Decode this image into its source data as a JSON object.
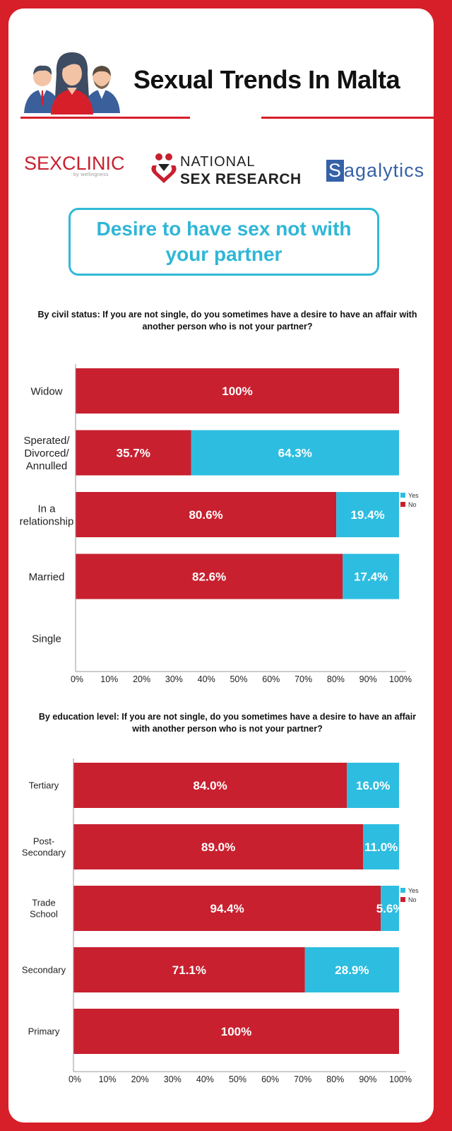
{
  "header": {
    "title": "Sexual Trends  In Malta"
  },
  "logos": {
    "sexclinic": "SEXCLINIC",
    "sexclinic_sub": "by wellingness",
    "nsr_line1": "NATIONAL",
    "nsr_line2": "SEX RESEARCH",
    "sagalytics_s": "S",
    "sagalytics_rest": "agalytics"
  },
  "topic": "Desire to have sex not with your partner",
  "colors": {
    "yes": "#2dbde0",
    "no": "#c8202f",
    "brand": "#d71f2a"
  },
  "chart_data": [
    {
      "type": "bar",
      "orientation": "horizontal",
      "stacked": true,
      "title": "By civil status: If you are not single, do you sometimes have a desire to have an affair with another person who is not your partner?",
      "categories": [
        "Widow",
        "Sperated/ Divorced/ Annulled",
        "In a relationship",
        "Married",
        "Single"
      ],
      "category_lines": [
        [
          "Widow"
        ],
        [
          "Sperated/",
          "Divorced/",
          "Annulled"
        ],
        [
          "In a",
          "relationship"
        ],
        [
          "Married"
        ],
        [
          "Single"
        ]
      ],
      "series": [
        {
          "name": "No",
          "values": [
            100,
            35.7,
            80.6,
            82.6,
            null
          ],
          "labels": [
            "100%",
            "35.7%",
            "80.6%",
            "82.6%",
            ""
          ]
        },
        {
          "name": "Yes",
          "values": [
            0,
            64.3,
            19.4,
            17.4,
            null
          ],
          "labels": [
            "",
            "64.3%",
            "19.4%",
            "17.4%",
            ""
          ]
        }
      ],
      "xlim": [
        0,
        100
      ],
      "xticks": [
        "0%",
        "10%",
        "20%",
        "30%",
        "40%",
        "50%",
        "60%",
        "70%",
        "80%",
        "90%",
        "100%"
      ],
      "legend": [
        "Yes",
        "No"
      ],
      "legend_position": "right"
    },
    {
      "type": "bar",
      "orientation": "horizontal",
      "stacked": true,
      "title": "By education level: If you are not single, do you sometimes have a desire to have an affair with another person who is not your partner?",
      "categories": [
        "Tertiary",
        "Post-Secondary",
        "Trade School",
        "Secondary",
        "Primary"
      ],
      "category_lines": [
        [
          "Tertiary"
        ],
        [
          "Post-",
          "Secondary"
        ],
        [
          "Trade",
          "School"
        ],
        [
          "Secondary"
        ],
        [
          "Primary"
        ]
      ],
      "series": [
        {
          "name": "No",
          "values": [
            84.0,
            89.0,
            94.4,
            71.1,
            100
          ],
          "labels": [
            "84.0%",
            "89.0%",
            "94.4%",
            "71.1%",
            "100%"
          ]
        },
        {
          "name": "Yes",
          "values": [
            16.0,
            11.0,
            5.6,
            28.9,
            0
          ],
          "labels": [
            "16.0%",
            "11.0%",
            "5.6%",
            "28.9%",
            ""
          ]
        }
      ],
      "xlim": [
        0,
        100
      ],
      "xticks": [
        "0%",
        "10%",
        "20%",
        "30%",
        "40%",
        "50%",
        "60%",
        "70%",
        "80%",
        "90%",
        "100%"
      ],
      "legend": [
        "Yes",
        "No"
      ],
      "legend_position": "right"
    }
  ]
}
